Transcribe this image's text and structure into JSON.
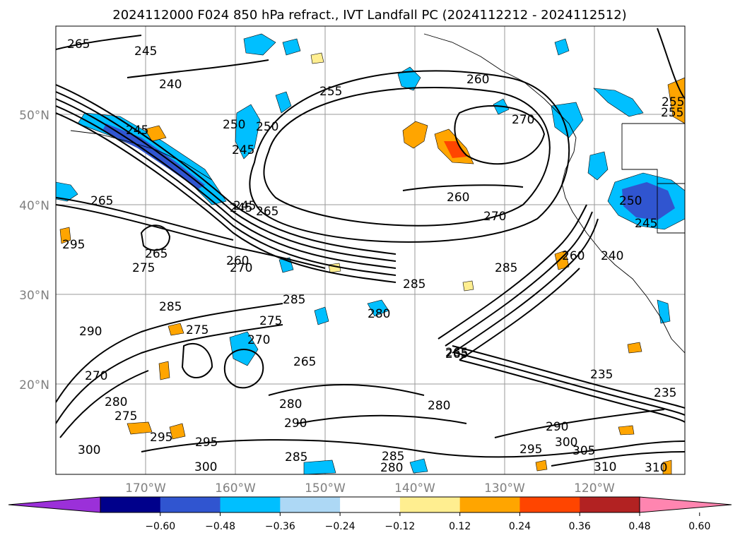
{
  "title": "2024112000 F024 850 hPa refract., IVT Landfall PC (2024112212 - 2024112512)",
  "lat_labels": [
    "50°N",
    "40°N",
    "30°N",
    "20°N"
  ],
  "lon_labels": [
    "170°W",
    "160°W",
    "150°W",
    "140°W",
    "130°W",
    "120°W"
  ],
  "colorbar": {
    "ticks": [
      "−0.60",
      "−0.48",
      "−0.36",
      "−0.24",
      "−0.12",
      "0.12",
      "0.24",
      "0.36",
      "0.48",
      "0.60"
    ],
    "colors": [
      "#9b30d9",
      "#00008b",
      "#3055d0",
      "#00bfff",
      "#add8f5",
      "#ffffff",
      "#ffee90",
      "#ffa500",
      "#ff4500",
      "#b22222",
      "#ff85b0"
    ],
    "extend": "both"
  },
  "contour_labels": [
    "265",
    "245",
    "240",
    "245",
    "250",
    "250",
    "245",
    "255",
    "260",
    "270",
    "255",
    "260",
    "265",
    "270",
    "265",
    "245",
    "260",
    "250",
    "245",
    "240",
    "295",
    "265",
    "275",
    "285",
    "270",
    "285",
    "280",
    "275",
    "270",
    "265",
    "290",
    "270",
    "275",
    "265",
    "285",
    "280",
    "275",
    "280",
    "290",
    "285",
    "295",
    "300",
    "280",
    "295",
    "300",
    "290",
    "285",
    "295",
    "305",
    "300",
    "310",
    "310",
    "235",
    "235",
    "265",
    "255",
    "245",
    "260",
    "280",
    "285"
  ]
}
